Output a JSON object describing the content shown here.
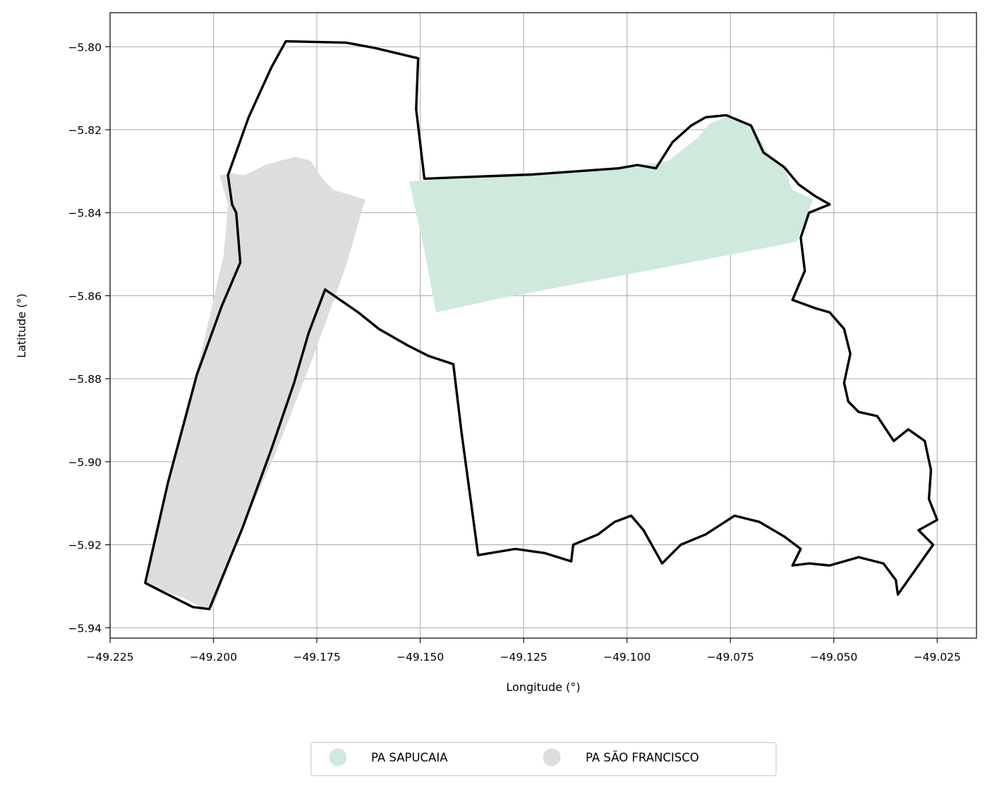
{
  "chart_data": {
    "type": "map",
    "xlabel": "Longitude (°)",
    "ylabel": "Latitude (°)",
    "xlim": [
      -49.225,
      -49.0155
    ],
    "ylim": [
      -5.9425,
      -5.7918
    ],
    "x_ticks": [
      -49.225,
      -49.2,
      -49.175,
      -49.15,
      -49.125,
      -49.1,
      -49.075,
      -49.05,
      -49.025
    ],
    "x_tick_labels": [
      "−49.225",
      "−49.200",
      "−49.175",
      "−49.150",
      "−49.125",
      "−49.100",
      "−49.075",
      "−49.050",
      "−49.025"
    ],
    "y_ticks": [
      -5.8,
      -5.82,
      -5.84,
      -5.86,
      -5.88,
      -5.9,
      -5.92,
      -5.94
    ],
    "y_tick_labels": [
      "−5.80",
      "−5.82",
      "−5.84",
      "−5.86",
      "−5.88",
      "−5.90",
      "−5.92",
      "−5.94"
    ],
    "grid": true,
    "legend_position": "bottom-center",
    "series": [
      {
        "name": "PA SAPUCAIA",
        "color": "#cfeadd",
        "polygon": [
          [
            -49.1527,
            -5.8324
          ],
          [
            -49.123,
            -5.8308
          ],
          [
            -49.1,
            -5.829
          ],
          [
            -49.09,
            -5.8275
          ],
          [
            -49.083,
            -5.822
          ],
          [
            -49.08,
            -5.8185
          ],
          [
            -49.076,
            -5.817
          ],
          [
            -49.07,
            -5.8185
          ],
          [
            -49.066,
            -5.8255
          ],
          [
            -49.062,
            -5.829
          ],
          [
            -49.06,
            -5.8345
          ],
          [
            -49.055,
            -5.8368
          ],
          [
            -49.057,
            -5.842
          ],
          [
            -49.059,
            -5.847
          ],
          [
            -49.09,
            -5.853
          ],
          [
            -49.13,
            -5.8605
          ],
          [
            -49.1462,
            -5.864
          ],
          [
            -49.149,
            -5.849
          ]
        ]
      },
      {
        "name": "PA SÃO FRANCISCO",
        "color": "#dddddd",
        "polygon": [
          [
            -49.1955,
            -5.8305
          ],
          [
            -49.1925,
            -5.831
          ],
          [
            -49.1875,
            -5.8285
          ],
          [
            -49.184,
            -5.8275
          ],
          [
            -49.18,
            -5.8265
          ],
          [
            -49.1765,
            -5.8275
          ],
          [
            -49.1735,
            -5.832
          ],
          [
            -49.171,
            -5.8345
          ],
          [
            -49.1633,
            -5.8368
          ],
          [
            -49.168,
            -5.853
          ],
          [
            -49.172,
            -5.864
          ],
          [
            -49.176,
            -5.875
          ],
          [
            -49.185,
            -5.898
          ],
          [
            -49.193,
            -5.916
          ],
          [
            -49.2,
            -5.935
          ],
          [
            -49.203,
            -5.935
          ],
          [
            -49.208,
            -5.9325
          ],
          [
            -49.2125,
            -5.931
          ],
          [
            -49.2165,
            -5.929
          ],
          [
            -49.21,
            -5.9
          ],
          [
            -49.203,
            -5.874
          ],
          [
            -49.1975,
            -5.85
          ],
          [
            -49.1965,
            -5.838
          ],
          [
            -49.1985,
            -5.831
          ]
        ]
      }
    ],
    "boundary": {
      "color": "#000000",
      "polygon": [
        [
          -49.1825,
          -5.7987
        ],
        [
          -49.168,
          -5.799
        ],
        [
          -49.161,
          -5.8003
        ],
        [
          -49.1505,
          -5.8028
        ],
        [
          -49.151,
          -5.815
        ],
        [
          -49.149,
          -5.8318
        ],
        [
          -49.123,
          -5.8308
        ],
        [
          -49.102,
          -5.8293
        ],
        [
          -49.0975,
          -5.8285
        ],
        [
          -49.093,
          -5.8293
        ],
        [
          -49.089,
          -5.823
        ],
        [
          -49.0845,
          -5.819
        ],
        [
          -49.081,
          -5.817
        ],
        [
          -49.076,
          -5.8165
        ],
        [
          -49.07,
          -5.819
        ],
        [
          -49.067,
          -5.8255
        ],
        [
          -49.062,
          -5.829
        ],
        [
          -49.0585,
          -5.8332
        ],
        [
          -49.0545,
          -5.836
        ],
        [
          -49.051,
          -5.838
        ],
        [
          -49.056,
          -5.84
        ],
        [
          -49.058,
          -5.846
        ],
        [
          -49.057,
          -5.854
        ],
        [
          -49.06,
          -5.861
        ],
        [
          -49.0545,
          -5.863
        ],
        [
          -49.051,
          -5.864
        ],
        [
          -49.0475,
          -5.868
        ],
        [
          -49.046,
          -5.874
        ],
        [
          -49.0475,
          -5.881
        ],
        [
          -49.0465,
          -5.8855
        ],
        [
          -49.044,
          -5.888
        ],
        [
          -49.0395,
          -5.889
        ],
        [
          -49.0355,
          -5.895
        ],
        [
          -49.032,
          -5.8922
        ],
        [
          -49.028,
          -5.895
        ],
        [
          -49.0265,
          -5.902
        ],
        [
          -49.027,
          -5.909
        ],
        [
          -49.025,
          -5.914
        ],
        [
          -49.0295,
          -5.9165
        ],
        [
          -49.026,
          -5.92
        ],
        [
          -49.0345,
          -5.932
        ],
        [
          -49.035,
          -5.9285
        ],
        [
          -49.038,
          -5.9245
        ],
        [
          -49.044,
          -5.923
        ],
        [
          -49.051,
          -5.925
        ],
        [
          -49.056,
          -5.9245
        ],
        [
          -49.06,
          -5.925
        ],
        [
          -49.058,
          -5.921
        ],
        [
          -49.062,
          -5.918
        ],
        [
          -49.068,
          -5.9145
        ],
        [
          -49.074,
          -5.913
        ],
        [
          -49.081,
          -5.9175
        ],
        [
          -49.087,
          -5.92
        ],
        [
          -49.0915,
          -5.9245
        ],
        [
          -49.096,
          -5.9165
        ],
        [
          -49.099,
          -5.913
        ],
        [
          -49.103,
          -5.9145
        ],
        [
          -49.107,
          -5.9175
        ],
        [
          -49.113,
          -5.92
        ],
        [
          -49.1135,
          -5.924
        ],
        [
          -49.12,
          -5.922
        ],
        [
          -49.127,
          -5.921
        ],
        [
          -49.136,
          -5.9225
        ],
        [
          -49.14,
          -5.893
        ],
        [
          -49.142,
          -5.8765
        ],
        [
          -49.148,
          -5.8745
        ],
        [
          -49.153,
          -5.872
        ],
        [
          -49.16,
          -5.868
        ],
        [
          -49.165,
          -5.864
        ],
        [
          -49.173,
          -5.8585
        ],
        [
          -49.177,
          -5.869
        ],
        [
          -49.1805,
          -5.881
        ],
        [
          -49.186,
          -5.897
        ],
        [
          -49.193,
          -5.916
        ],
        [
          -49.201,
          -5.9355
        ],
        [
          -49.205,
          -5.935
        ],
        [
          -49.209,
          -5.933
        ],
        [
          -49.213,
          -5.931
        ],
        [
          -49.2165,
          -5.9292
        ],
        [
          -49.211,
          -5.905
        ],
        [
          -49.204,
          -5.879
        ],
        [
          -49.198,
          -5.8625
        ],
        [
          -49.1935,
          -5.852
        ],
        [
          -49.1945,
          -5.84
        ],
        [
          -49.1955,
          -5.838
        ],
        [
          -49.1965,
          -5.831
        ],
        [
          -49.1915,
          -5.817
        ],
        [
          -49.186,
          -5.805
        ]
      ]
    }
  },
  "legend": {
    "items": [
      {
        "label": "PA SAPUCAIA",
        "color": "#cfeadd"
      },
      {
        "label": "PA SÃO FRANCISCO",
        "color": "#dddddd"
      }
    ]
  }
}
